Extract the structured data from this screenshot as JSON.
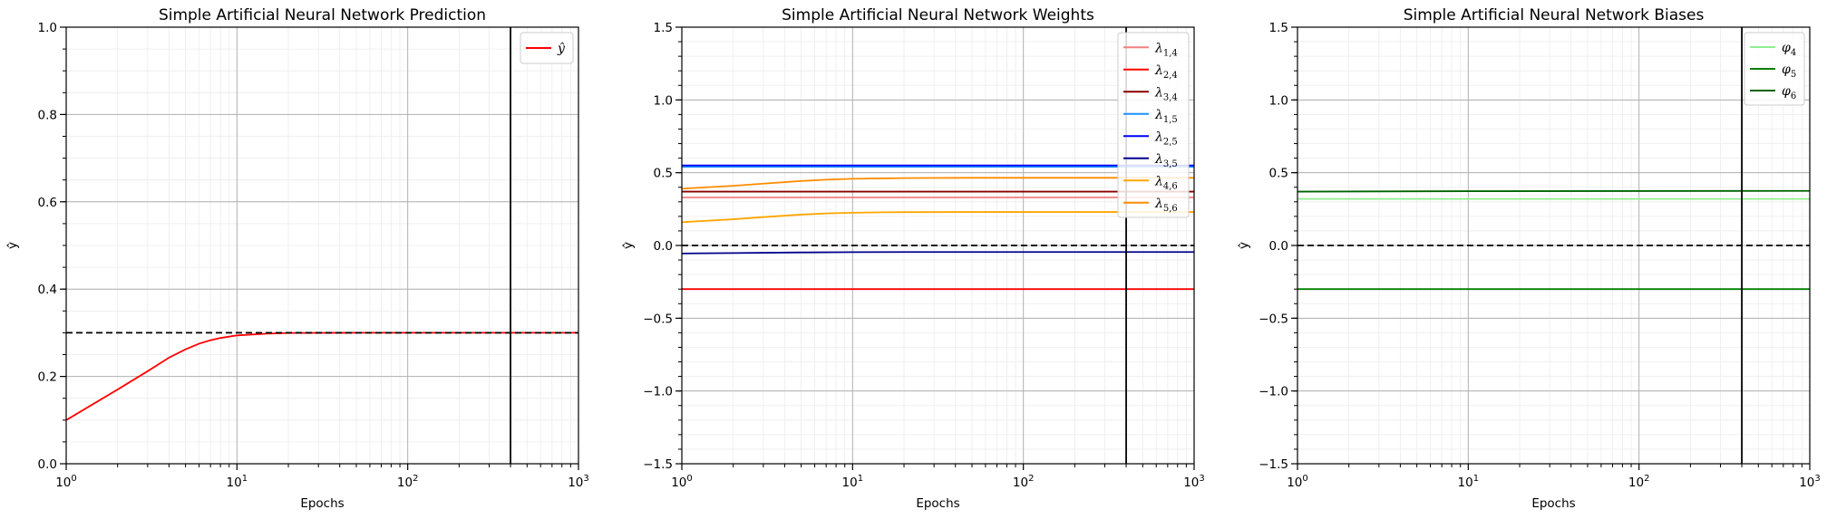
{
  "chart_data": [
    {
      "type": "line",
      "title": "Simple Artificial Neural Network Prediction",
      "xlabel": "Epochs",
      "ylabel": "ŷ",
      "xscale": "log",
      "xlim": [
        1,
        1000
      ],
      "ylim": [
        0,
        1
      ],
      "yticks": [
        0.0,
        0.2,
        0.4,
        0.6,
        0.8,
        1.0
      ],
      "ytick_labels": [
        "0.0",
        "0.2",
        "0.4",
        "0.6",
        "0.8",
        "1.0"
      ],
      "xticks": [
        1,
        10,
        100,
        1000
      ],
      "xtick_base": "10",
      "xtick_exponents": [
        "0",
        "1",
        "2",
        "3"
      ],
      "grid": true,
      "legend_position": "top-right",
      "hline": 0.3,
      "vline": 400,
      "series": [
        {
          "name": "ŷ",
          "label_main": "ŷ",
          "label_sub": "",
          "color": "#ff0000",
          "x": [
            1,
            2,
            3,
            4,
            5,
            6,
            7,
            8,
            10,
            15,
            20,
            50,
            100,
            400,
            1000
          ],
          "values": [
            0.1,
            0.17,
            0.212,
            0.243,
            0.262,
            0.275,
            0.283,
            0.288,
            0.294,
            0.298,
            0.2995,
            0.3,
            0.3,
            0.3,
            0.3
          ]
        }
      ]
    },
    {
      "type": "line",
      "title": "Simple Artificial Neural Network Weights",
      "xlabel": "Epochs",
      "ylabel": "ŷ",
      "xscale": "log",
      "xlim": [
        1,
        1000
      ],
      "ylim": [
        -1.5,
        1.5
      ],
      "yticks": [
        -1.5,
        -1.0,
        -0.5,
        0.0,
        0.5,
        1.0,
        1.5
      ],
      "ytick_labels": [
        "−1.5",
        "−1.0",
        "−0.5",
        "0.0",
        "0.5",
        "1.0",
        "1.5"
      ],
      "xticks": [
        1,
        10,
        100,
        1000
      ],
      "xtick_base": "10",
      "xtick_exponents": [
        "0",
        "1",
        "2",
        "3"
      ],
      "grid": true,
      "legend_position": "top-right",
      "hline": 0.0,
      "vline": 400,
      "series": [
        {
          "name": "λ1,4",
          "label_main": "λ",
          "label_sub": "1,4",
          "color": "#f08080",
          "x": [
            1,
            1000
          ],
          "values": [
            0.33,
            0.33
          ]
        },
        {
          "name": "λ2,4",
          "label_main": "λ",
          "label_sub": "2,4",
          "color": "#ff0000",
          "x": [
            1,
            1000
          ],
          "values": [
            -0.3,
            -0.3
          ]
        },
        {
          "name": "λ3,4",
          "label_main": "λ",
          "label_sub": "3,4",
          "color": "#8b0000",
          "x": [
            1,
            1000
          ],
          "values": [
            0.37,
            0.37
          ]
        },
        {
          "name": "λ1,5",
          "label_main": "λ",
          "label_sub": "1,5",
          "color": "#1e90ff",
          "x": [
            1,
            1000
          ],
          "values": [
            0.54,
            0.54
          ]
        },
        {
          "name": "λ2,5",
          "label_main": "λ",
          "label_sub": "2,5",
          "color": "#0000ff",
          "x": [
            1,
            1000
          ],
          "values": [
            0.55,
            0.55
          ]
        },
        {
          "name": "λ3,5",
          "label_main": "λ",
          "label_sub": "3,5",
          "color": "#00008b",
          "x": [
            1,
            2,
            5,
            10,
            20,
            100,
            1000
          ],
          "values": [
            -0.055,
            -0.052,
            -0.048,
            -0.046,
            -0.045,
            -0.045,
            -0.045
          ]
        },
        {
          "name": "λ4,6",
          "label_main": "λ",
          "label_sub": "4,6",
          "color": "#ffa500",
          "x": [
            1,
            2,
            3,
            5,
            7,
            10,
            15,
            20,
            50,
            100,
            1000
          ],
          "values": [
            0.16,
            0.18,
            0.195,
            0.212,
            0.22,
            0.225,
            0.228,
            0.229,
            0.23,
            0.23,
            0.23
          ]
        },
        {
          "name": "λ5,6",
          "label_main": "λ",
          "label_sub": "5,6",
          "color": "#ff8c00",
          "x": [
            1,
            2,
            3,
            5,
            7,
            10,
            15,
            20,
            50,
            100,
            1000
          ],
          "values": [
            0.39,
            0.41,
            0.425,
            0.443,
            0.452,
            0.458,
            0.461,
            0.463,
            0.465,
            0.465,
            0.465
          ]
        }
      ]
    },
    {
      "type": "line",
      "title": "Simple Artificial Neural Network Biases",
      "xlabel": "Epochs",
      "ylabel": "ŷ",
      "xscale": "log",
      "xlim": [
        1,
        1000
      ],
      "ylim": [
        -1.5,
        1.5
      ],
      "yticks": [
        -1.5,
        -1.0,
        -0.5,
        0.0,
        0.5,
        1.0,
        1.5
      ],
      "ytick_labels": [
        "−1.5",
        "−1.0",
        "−0.5",
        "0.0",
        "0.5",
        "1.0",
        "1.5"
      ],
      "xticks": [
        1,
        10,
        100,
        1000
      ],
      "xtick_base": "10",
      "xtick_exponents": [
        "0",
        "1",
        "2",
        "3"
      ],
      "grid": true,
      "legend_position": "top-right",
      "hline": 0.0,
      "vline": 400,
      "series": [
        {
          "name": "φ4",
          "label_main": "φ",
          "label_sub": "4",
          "color": "#90ee90",
          "x": [
            1,
            1000
          ],
          "values": [
            0.32,
            0.32
          ]
        },
        {
          "name": "φ5",
          "label_main": "φ",
          "label_sub": "5",
          "color": "#008000",
          "x": [
            1,
            1000
          ],
          "values": [
            -0.3,
            -0.3
          ]
        },
        {
          "name": "φ6",
          "label_main": "φ",
          "label_sub": "6",
          "color": "#006400",
          "x": [
            1,
            10,
            1000
          ],
          "values": [
            0.37,
            0.373,
            0.375
          ]
        }
      ]
    }
  ]
}
